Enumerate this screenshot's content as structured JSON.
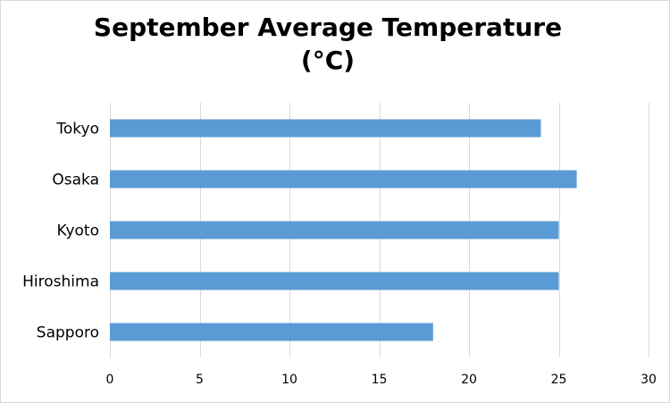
{
  "chart_data": {
    "type": "bar",
    "orientation": "horizontal",
    "title": "September Average Temperature",
    "title_line2": "(°C)",
    "categories": [
      "Tokyo",
      "Osaka",
      "Kyoto",
      "Hiroshima",
      "Sapporo"
    ],
    "series": [
      {
        "values": [
          24,
          26,
          25,
          25,
          18
        ],
        "color": "#5b9bd5"
      }
    ],
    "xlim": [
      0,
      30
    ],
    "xticks": [
      0,
      5,
      10,
      15,
      20,
      25,
      30
    ],
    "xtick_labels": [
      "0",
      "5",
      "10",
      "15",
      "20",
      "25",
      "30"
    ],
    "grid": "vertical",
    "gridline_color": "#d9d9d9",
    "legend": "none"
  }
}
